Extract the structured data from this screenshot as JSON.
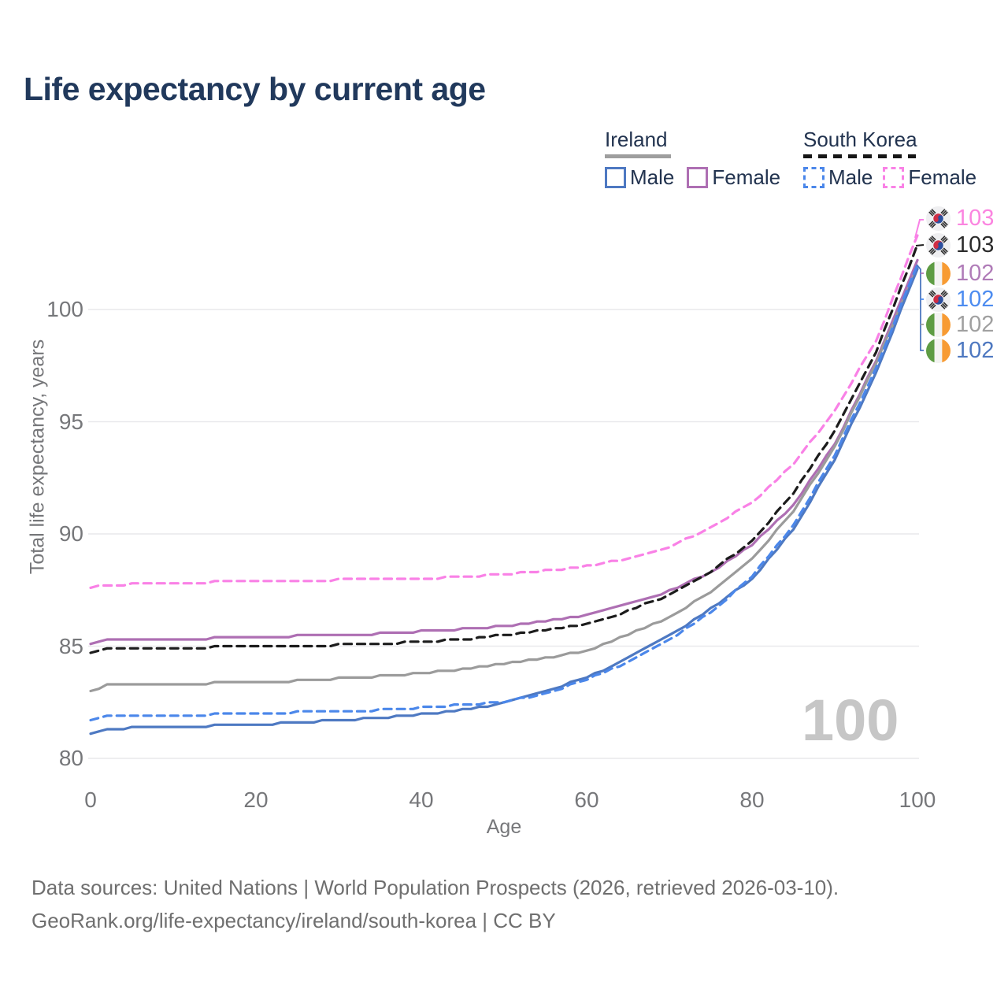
{
  "title": "Life expectancy by current age",
  "legend": {
    "groups": [
      {
        "label": "Ireland",
        "line_style": "solid",
        "underline_color": "#9e9e9e",
        "items": [
          {
            "label": "Male",
            "color": "#4e79c2",
            "dashed": false
          },
          {
            "label": "Female",
            "color": "#ae6fb3",
            "dashed": false
          }
        ]
      },
      {
        "label": "South Korea",
        "line_style": "dashed",
        "underline_color": "#161616",
        "items": [
          {
            "label": "Male",
            "color": "#4b87ea",
            "dashed": true
          },
          {
            "label": "Female",
            "color": "#f981e6",
            "dashed": true
          }
        ]
      }
    ]
  },
  "y_axis": {
    "title": "Total life expectancy, years",
    "ticks": [
      "80",
      "85",
      "90",
      "95",
      "100"
    ]
  },
  "x_axis": {
    "title": "Age",
    "ticks": [
      "0",
      "20",
      "40",
      "60",
      "80",
      "100"
    ]
  },
  "watermark": "100",
  "end_labels": [
    {
      "flag": "south-korea",
      "value": "103",
      "color": "#fb85e0"
    },
    {
      "flag": "south-korea",
      "value": "103",
      "color": "#2b2b2b"
    },
    {
      "flag": "ireland",
      "value": "102",
      "color": "#b07cb8"
    },
    {
      "flag": "south-korea",
      "value": "102",
      "color": "#4d8cf0"
    },
    {
      "flag": "ireland",
      "value": "102",
      "color": "#a0a0a0"
    },
    {
      "flag": "ireland",
      "value": "102",
      "color": "#4e78c0"
    }
  ],
  "footer": {
    "line1": "Data sources: United Nations | World Population Prospects (2026, retrieved 2026-03-10).",
    "line2": "GeoRank.org/life-expectancy/ireland/south-korea | CC BY"
  },
  "chart_data": {
    "type": "line",
    "title": "Life expectancy by current age",
    "xlabel": "Age",
    "ylabel": "Total life expectancy, years",
    "xlim": [
      0,
      100
    ],
    "ylim": [
      80,
      103.5
    ],
    "grid": "horizontal-only",
    "legend_position": "top-right",
    "x": [
      0,
      2,
      5,
      10,
      15,
      20,
      25,
      30,
      35,
      40,
      45,
      50,
      55,
      60,
      65,
      70,
      75,
      80,
      85,
      90,
      95,
      100
    ],
    "series": [
      {
        "name": "Ireland Male",
        "country": "Ireland",
        "sex": "Male",
        "color": "#4e79c2",
        "dashed": false,
        "end_label": "102",
        "values": [
          81.1,
          81.3,
          81.35,
          81.4,
          81.45,
          81.5,
          81.6,
          81.7,
          81.8,
          81.95,
          82.15,
          82.45,
          83.0,
          83.6,
          84.45,
          85.45,
          86.65,
          88.0,
          90.2,
          93.3,
          97.2,
          101.8
        ]
      },
      {
        "name": "Ireland Female",
        "country": "Ireland",
        "sex": "Female",
        "color": "#ae6fb3",
        "dashed": false,
        "end_label": "102",
        "values": [
          85.05,
          85.25,
          85.3,
          85.3,
          85.35,
          85.4,
          85.45,
          85.5,
          85.55,
          85.65,
          85.75,
          85.9,
          86.1,
          86.4,
          86.85,
          87.45,
          88.3,
          89.5,
          91.3,
          94.0,
          97.7,
          102.2
        ]
      },
      {
        "name": "Ireland Both sexes",
        "country": "Ireland",
        "sex": "Both",
        "color": "#9b9b9b",
        "dashed": false,
        "end_label": "102",
        "values": [
          83.0,
          83.25,
          83.3,
          83.3,
          83.35,
          83.4,
          83.45,
          83.55,
          83.65,
          83.8,
          83.95,
          84.2,
          84.45,
          84.8,
          85.5,
          86.3,
          87.4,
          88.9,
          91.0,
          93.9,
          97.6,
          101.9
        ]
      },
      {
        "name": "South Korea Male",
        "country": "South Korea",
        "sex": "Male",
        "color": "#4b87ea",
        "dashed": true,
        "end_label": "102",
        "values": [
          81.65,
          81.85,
          81.9,
          81.9,
          81.95,
          82.0,
          82.05,
          82.1,
          82.15,
          82.25,
          82.4,
          82.5,
          82.9,
          83.5,
          84.3,
          85.3,
          86.5,
          88.1,
          90.4,
          93.5,
          97.4,
          102.0
        ]
      },
      {
        "name": "South Korea Female",
        "country": "South Korea",
        "sex": "Female",
        "color": "#f981e6",
        "dashed": true,
        "end_label": "103",
        "values": [
          87.6,
          87.72,
          87.75,
          87.8,
          87.85,
          87.85,
          87.9,
          87.95,
          88.0,
          88.0,
          88.1,
          88.2,
          88.35,
          88.55,
          88.9,
          89.4,
          90.3,
          91.4,
          93.1,
          95.5,
          98.6,
          103.3
        ]
      },
      {
        "name": "South Korea Both sexes",
        "country": "South Korea",
        "sex": "Both",
        "color": "#1c1c1c",
        "dashed": true,
        "end_label": "103",
        "values": [
          84.65,
          84.85,
          84.9,
          84.9,
          84.95,
          84.95,
          85.0,
          85.05,
          85.1,
          85.2,
          85.3,
          85.5,
          85.7,
          86.0,
          86.55,
          87.3,
          88.3,
          89.7,
          91.8,
          94.6,
          98.1,
          102.9
        ]
      }
    ]
  }
}
